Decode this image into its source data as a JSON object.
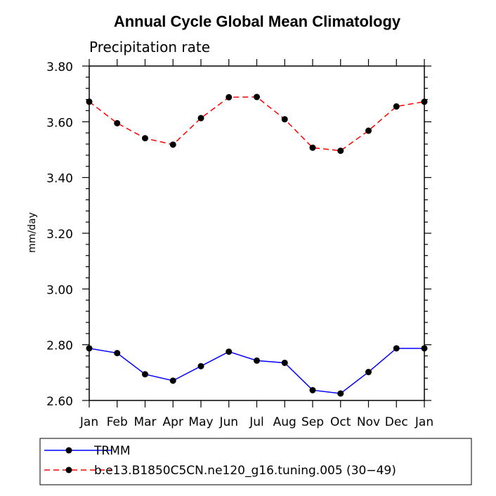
{
  "chart_data": {
    "type": "line",
    "title": "Annual Cycle Global Mean Climatology",
    "subtitle": "Precipitation rate",
    "xlabel": "",
    "ylabel": "mm/day",
    "categories": [
      "Jan",
      "Feb",
      "Mar",
      "Apr",
      "May",
      "Jun",
      "Jul",
      "Aug",
      "Sep",
      "Oct",
      "Nov",
      "Dec",
      "Jan"
    ],
    "ylim": [
      2.6,
      3.8
    ],
    "yticks": [
      "2.60",
      "2.80",
      "3.00",
      "3.20",
      "3.40",
      "3.60",
      "3.80"
    ],
    "grid": false,
    "legend_position": "bottom",
    "series": [
      {
        "name": "TRMM",
        "color": "#0000ff",
        "dash": "solid",
        "values": [
          2.787,
          2.77,
          2.694,
          2.671,
          2.723,
          2.775,
          2.743,
          2.735,
          2.637,
          2.625,
          2.702,
          2.787,
          2.787
        ]
      },
      {
        "name": "b.e13.B1850C5CN.ne120_g16.tuning.005 (30−49)",
        "color": "#ff0000",
        "dash": "dashed",
        "values": [
          3.672,
          3.595,
          3.541,
          3.518,
          3.613,
          3.688,
          3.689,
          3.609,
          3.507,
          3.496,
          3.568,
          3.655,
          3.672
        ]
      }
    ]
  }
}
